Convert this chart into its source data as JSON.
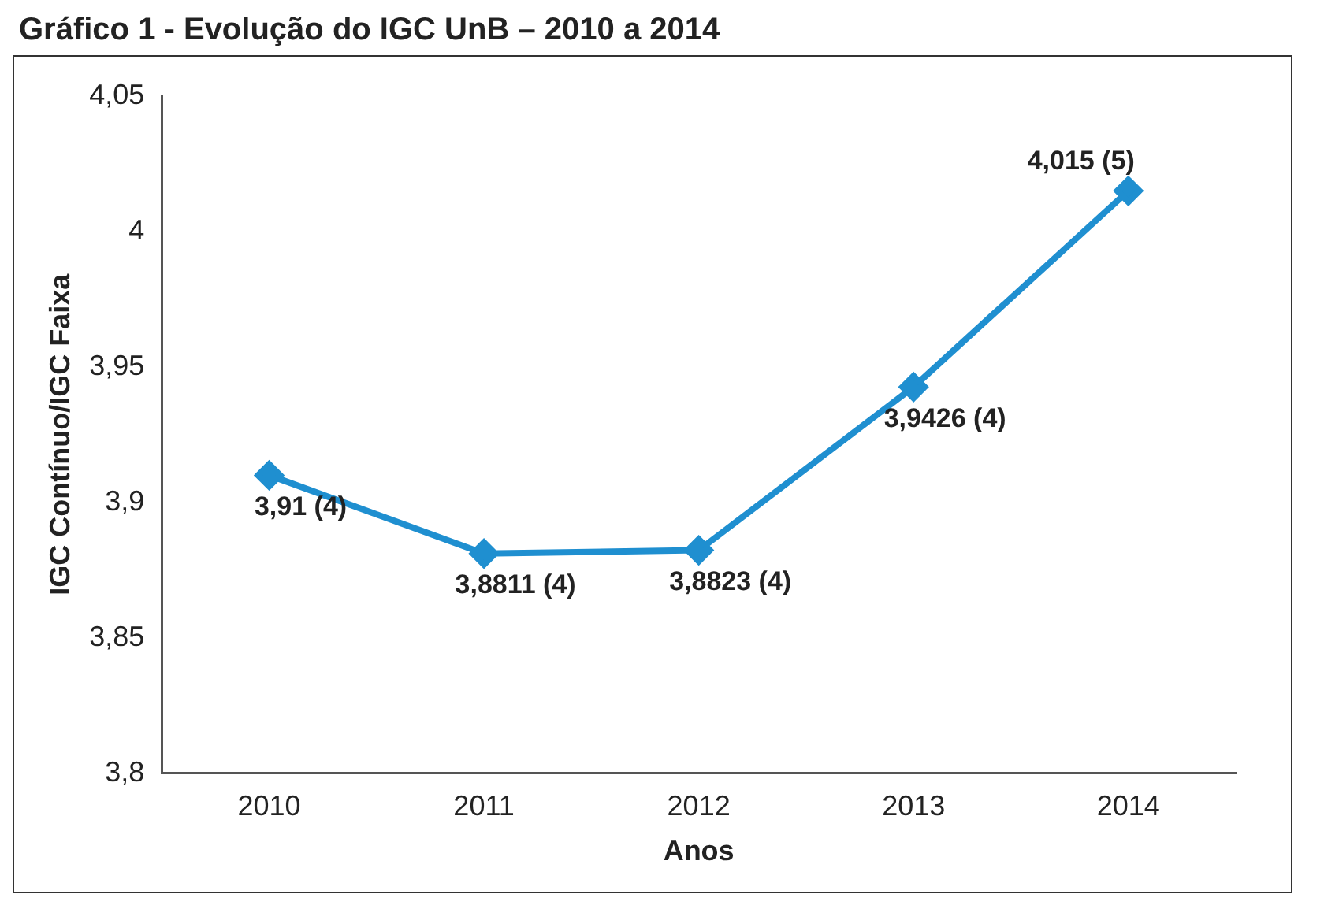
{
  "chart_data": {
    "type": "line",
    "title": "Gráfico 1 -  Evolução do IGC UnB – 2010 a 2014",
    "xlabel": "Anos",
    "ylabel": "IGC Contínuo/IGC Faixa",
    "categories": [
      "2010",
      "2011",
      "2012",
      "2013",
      "2014"
    ],
    "series": [
      {
        "color": "#1f8fd0",
        "values": [
          3.91,
          3.8811,
          3.8823,
          3.9426,
          4.015
        ],
        "value_labels": [
          "3,91 (4)",
          "3,8811 (4)",
          "3,8823 (4)",
          "3,9426 (4)",
          "4,015 (5)"
        ]
      }
    ],
    "ylim": [
      3.8,
      4.05
    ],
    "yticks": [
      {
        "value": 3.8,
        "label": "3,8"
      },
      {
        "value": 3.85,
        "label": "3,85"
      },
      {
        "value": 3.9,
        "label": "3,9"
      },
      {
        "value": 3.95,
        "label": "3,95"
      },
      4,
      {
        "value": 4.05,
        "label": "4,05"
      }
    ],
    "grid": false,
    "legend": false,
    "marker": "diamond",
    "line_style": "solid"
  }
}
